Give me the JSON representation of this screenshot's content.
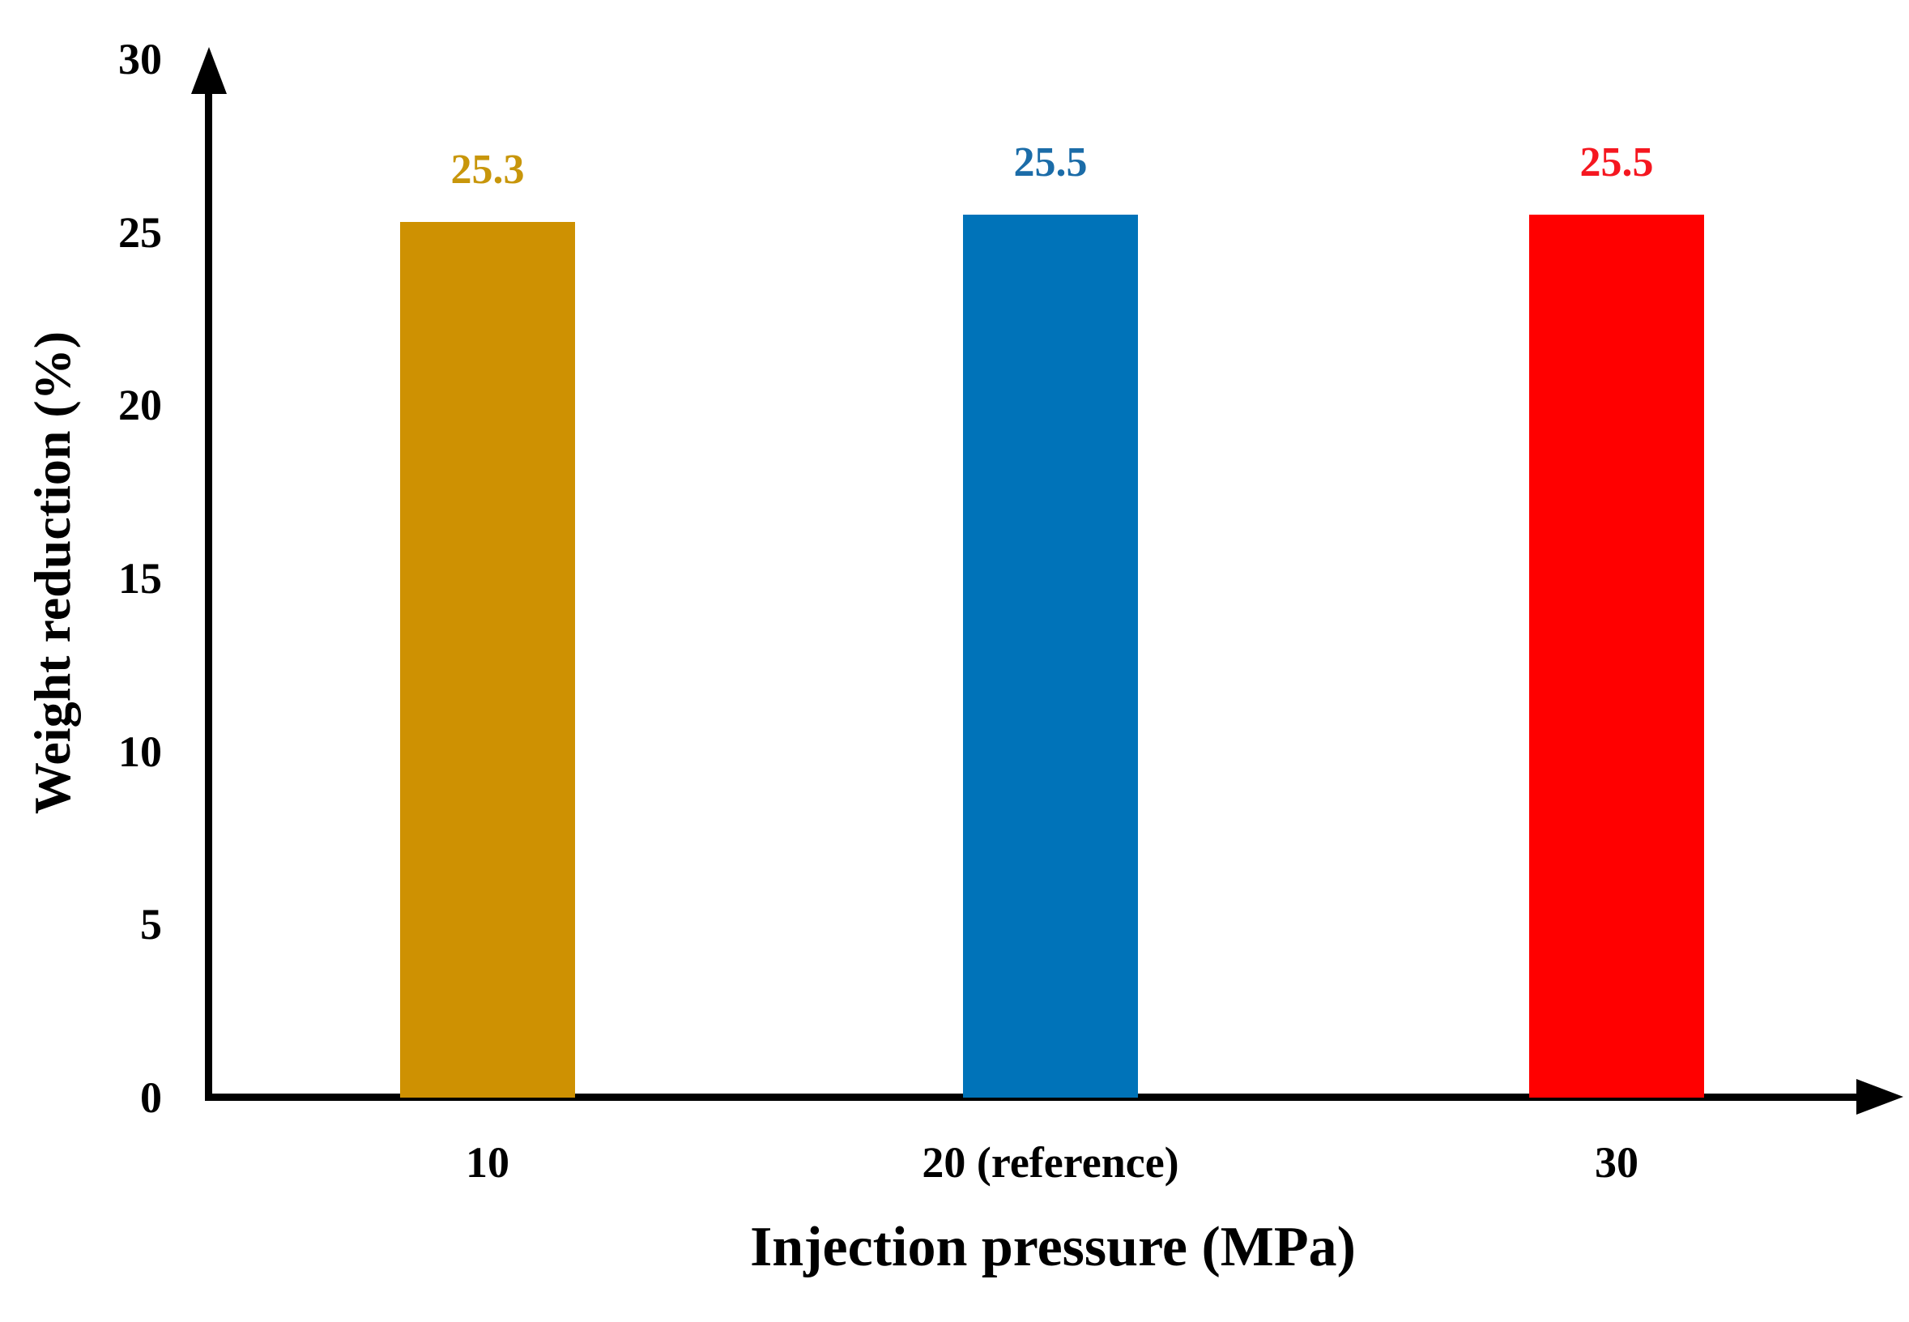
{
  "chart_data": {
    "type": "bar",
    "title": "",
    "xlabel": "Injection pressure (MPa)",
    "ylabel": "Weight reduction (%)",
    "categories": [
      "10",
      "20 (reference)",
      "30"
    ],
    "values": [
      25.3,
      25.5,
      25.5
    ],
    "value_labels": [
      "25.3",
      "25.5",
      "25.5"
    ],
    "bar_colors": [
      "#CE9102",
      "#0073B9",
      "#FF0000"
    ],
    "value_label_colors": [
      "#C8960B",
      "#1B6CA8",
      "#F51720"
    ],
    "ylim": [
      0,
      30
    ],
    "yticks": [
      "0",
      "5",
      "10",
      "15",
      "20",
      "25",
      "30"
    ],
    "grid": false,
    "legend_position": "none",
    "axis_color": "#000000",
    "background_color": "#FFFFFF"
  }
}
